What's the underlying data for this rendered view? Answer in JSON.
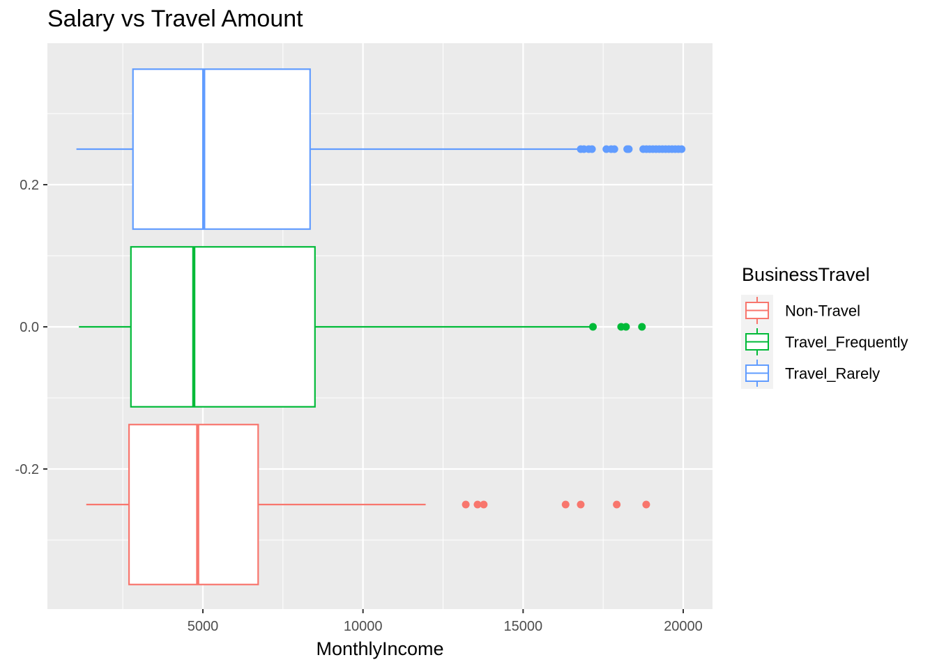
{
  "chart_data": {
    "type": "boxplot",
    "orientation": "horizontal",
    "title": "Salary vs Travel Amount",
    "xlabel": "MonthlyIncome",
    "ylabel": "",
    "xlim": [
      0,
      21500
    ],
    "ylim": [
      -0.4,
      0.4
    ],
    "x_ticks": [
      5000,
      10000,
      15000,
      20000
    ],
    "x_tick_labels": [
      "5000",
      "10000",
      "15000",
      "20000"
    ],
    "y_ticks": [
      -0.2,
      0.0,
      0.2
    ],
    "y_tick_labels": [
      "-0.2",
      "0.0",
      "0.2"
    ],
    "grid": true,
    "legend": {
      "title": "BusinessTravel",
      "placement": "right"
    },
    "series": [
      {
        "name": "Non-Travel",
        "color": "#F8766D",
        "y_center": -0.25,
        "y_bottom": -0.3625,
        "y_top": -0.1375,
        "whisker_low": 1359,
        "q1": 2694,
        "median": 4838,
        "q3": 6726,
        "whisker_high": 11957,
        "outliers": [
          13210,
          13577,
          13770,
          16327,
          16799,
          17924,
          18844
        ]
      },
      {
        "name": "Travel_Frequently",
        "color": "#00BA38",
        "y_center": 0.0,
        "y_bottom": -0.1125,
        "y_top": 0.1125,
        "whisker_low": 1129,
        "q1": 2753,
        "median": 4716,
        "q3": 8500,
        "whisker_high": 17100,
        "outliers": [
          17181,
          18061,
          18213,
          18711
        ]
      },
      {
        "name": "Travel_Rarely",
        "color": "#619CFF",
        "y_center": 0.25,
        "y_bottom": 0.1375,
        "y_top": 0.3625,
        "whisker_low": 1051,
        "q1": 2817,
        "median": 5026,
        "q3": 8348,
        "whisker_high": 16700,
        "outliers": [
          16800,
          16900,
          17050,
          17150,
          17600,
          17750,
          17850,
          18250,
          18300,
          18750,
          18850,
          18950,
          19050,
          19150,
          19250,
          19350,
          19450,
          19550,
          19650,
          19750,
          19850,
          19950
        ]
      }
    ]
  }
}
